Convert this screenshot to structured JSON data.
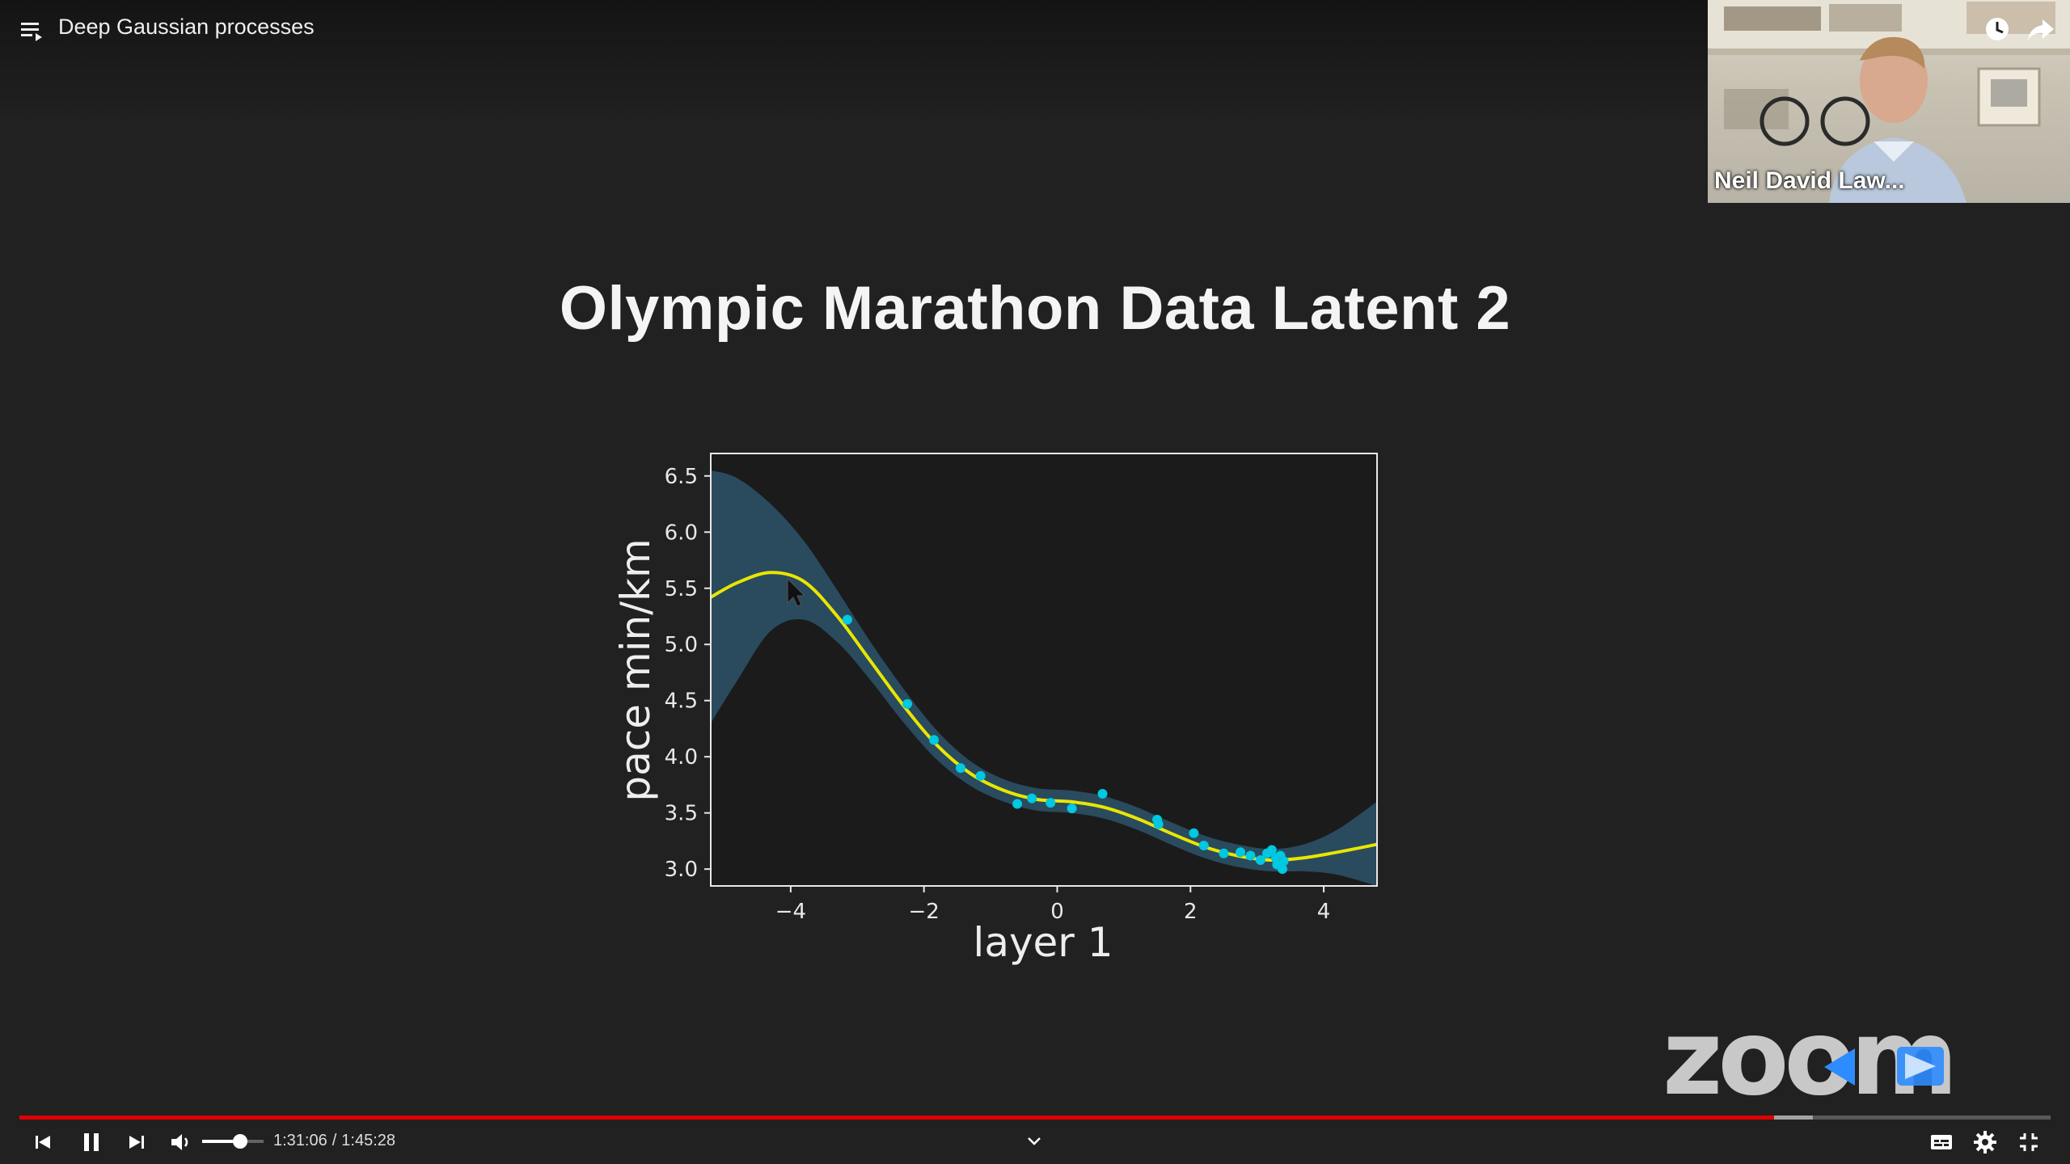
{
  "player": {
    "video_title": "Deep Gaussian processes",
    "current_time": "1:31:06",
    "duration": "1:45:28",
    "time_separator": "/",
    "progress_fraction": 0.864,
    "buffered_fraction": 0.883,
    "volume_fraction": 0.62,
    "accent_color": "#e00000",
    "icons": {
      "playlist": "playlist-icon",
      "watch_later": "clock-icon",
      "share": "share-icon",
      "previous": "skip-previous-icon",
      "pause": "pause-icon",
      "next": "skip-next-icon",
      "volume": "volume-icon",
      "chapters": "chevron-down-icon",
      "captions": "captions-icon",
      "settings": "gear-icon",
      "exit_fullscreen": "exit-fullscreen-icon"
    }
  },
  "webcam": {
    "participant_name": "Neil David Law..."
  },
  "slide": {
    "title": "Olympic Marathon Data Latent 2",
    "watermark": "zoom"
  },
  "chart_data": {
    "type": "line",
    "title": "",
    "xlabel": "layer 1",
    "ylabel": "pace min/km",
    "xlim": [
      -5.2,
      4.8
    ],
    "ylim": [
      2.85,
      6.7
    ],
    "x_ticks": [
      -4,
      -2,
      0,
      2,
      4
    ],
    "x_tick_labels": [
      "−4",
      "−2",
      "0",
      "2",
      "4"
    ],
    "y_ticks": [
      3.0,
      3.5,
      4.0,
      4.5,
      5.0,
      5.5,
      6.0,
      6.5
    ],
    "y_tick_labels": [
      "3.0",
      "3.5",
      "4.0",
      "4.5",
      "5.0",
      "5.5",
      "6.0",
      "6.5"
    ],
    "grid": false,
    "background": "#1b1b1b",
    "series": [
      {
        "kind": "mean",
        "color": "#e8e600",
        "x": [
          -5.2,
          -4.8,
          -4.3,
          -3.8,
          -3.3,
          -2.8,
          -2.3,
          -1.8,
          -1.3,
          -0.8,
          -0.3,
          0.2,
          0.7,
          1.2,
          1.7,
          2.2,
          2.7,
          3.2,
          3.7,
          4.2,
          4.8
        ],
        "y": [
          5.42,
          5.55,
          5.64,
          5.56,
          5.25,
          4.85,
          4.45,
          4.1,
          3.85,
          3.7,
          3.62,
          3.6,
          3.55,
          3.45,
          3.32,
          3.2,
          3.12,
          3.08,
          3.1,
          3.15,
          3.22
        ]
      },
      {
        "kind": "confidence-band",
        "color": "#2c5066",
        "x": [
          -5.2,
          -4.8,
          -4.3,
          -3.8,
          -3.3,
          -2.8,
          -2.3,
          -1.8,
          -1.3,
          -0.8,
          -0.3,
          0.2,
          0.7,
          1.2,
          1.7,
          2.2,
          2.7,
          3.2,
          3.7,
          4.2,
          4.8
        ],
        "upper": [
          6.55,
          6.48,
          6.25,
          5.92,
          5.48,
          5.02,
          4.6,
          4.23,
          3.96,
          3.8,
          3.72,
          3.7,
          3.65,
          3.55,
          3.42,
          3.3,
          3.22,
          3.18,
          3.22,
          3.35,
          3.6
        ],
        "lower": [
          4.3,
          4.68,
          5.12,
          5.22,
          5.02,
          4.68,
          4.3,
          3.97,
          3.74,
          3.6,
          3.52,
          3.5,
          3.45,
          3.35,
          3.22,
          3.1,
          3.02,
          2.98,
          2.98,
          2.95,
          2.85
        ]
      }
    ],
    "points": {
      "color": "#00c8e0",
      "x": [
        -3.15,
        -2.25,
        -1.85,
        -1.45,
        -1.15,
        -0.6,
        -0.38,
        -0.1,
        0.22,
        0.68,
        1.5,
        1.52,
        2.05,
        2.2,
        2.5,
        2.75,
        2.9,
        3.05,
        3.15,
        3.22,
        3.28,
        3.3,
        3.35,
        3.38,
        3.4
      ],
      "y": [
        5.22,
        4.47,
        4.15,
        3.9,
        3.83,
        3.58,
        3.63,
        3.59,
        3.54,
        3.67,
        3.44,
        3.4,
        3.32,
        3.21,
        3.14,
        3.15,
        3.12,
        3.08,
        3.14,
        3.17,
        3.1,
        3.04,
        3.12,
        3.0,
        3.07
      ]
    }
  }
}
